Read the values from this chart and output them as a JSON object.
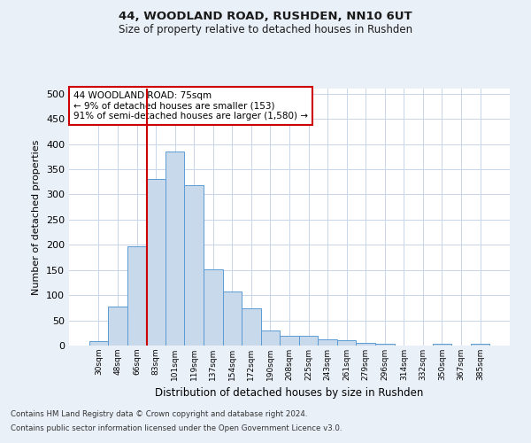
{
  "title_line1": "44, WOODLAND ROAD, RUSHDEN, NN10 6UT",
  "title_line2": "Size of property relative to detached houses in Rushden",
  "xlabel": "Distribution of detached houses by size in Rushden",
  "ylabel": "Number of detached properties",
  "bin_labels": [
    "30sqm",
    "48sqm",
    "66sqm",
    "83sqm",
    "101sqm",
    "119sqm",
    "137sqm",
    "154sqm",
    "172sqm",
    "190sqm",
    "208sqm",
    "225sqm",
    "243sqm",
    "261sqm",
    "279sqm",
    "296sqm",
    "314sqm",
    "332sqm",
    "350sqm",
    "367sqm",
    "385sqm"
  ],
  "bar_values": [
    8,
    78,
    197,
    330,
    385,
    318,
    151,
    108,
    73,
    30,
    19,
    20,
    12,
    10,
    5,
    4,
    0,
    0,
    3,
    0,
    3
  ],
  "bar_color": "#c9d9ec",
  "bar_edge_color": "#5b9bd5",
  "vline_color": "#cc0000",
  "annotation_text": "44 WOODLAND ROAD: 75sqm\n← 9% of detached houses are smaller (153)\n91% of semi-detached houses are larger (1,580) →",
  "annotation_box_color": "#ffffff",
  "annotation_box_edge_color": "#cc0000",
  "ylim": [
    0,
    510
  ],
  "yticks": [
    0,
    50,
    100,
    150,
    200,
    250,
    300,
    350,
    400,
    450,
    500
  ],
  "footer_line1": "Contains HM Land Registry data © Crown copyright and database right 2024.",
  "footer_line2": "Contains public sector information licensed under the Open Government Licence v3.0.",
  "bg_color": "#eaf0f8",
  "plot_bg_color": "#ffffff",
  "grid_color": "#c8d4e8"
}
